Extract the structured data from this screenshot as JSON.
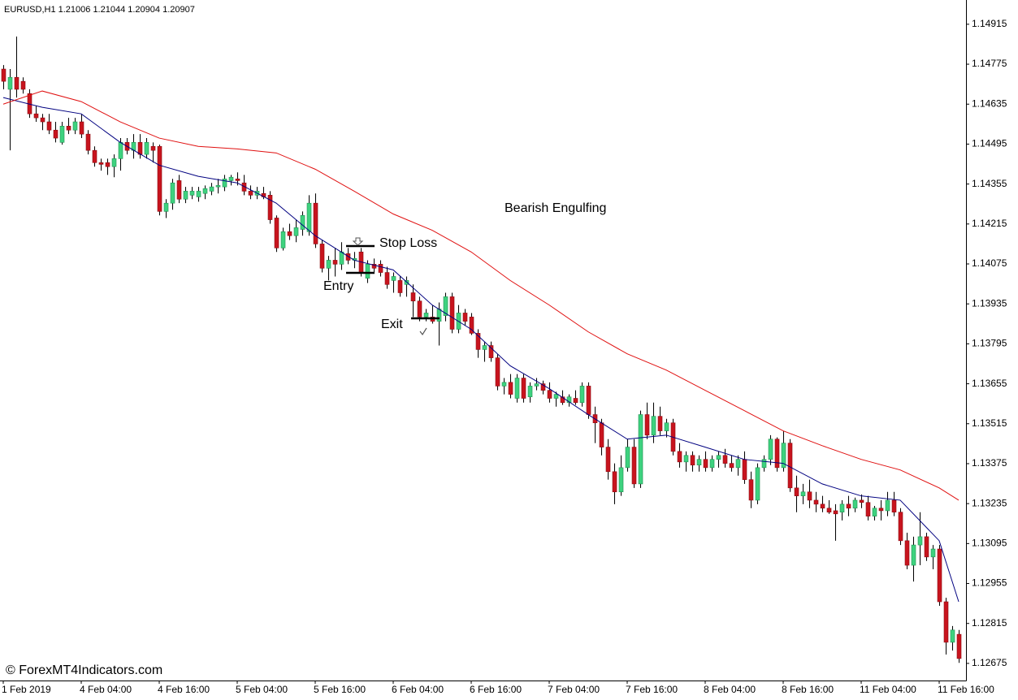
{
  "chart_data": {
    "type": "candlestick",
    "header": "EURUSD,H1  1.21006 1.21044 1.20904 1.20907",
    "bull_color": "#3ed27f",
    "bear_color": "#c8141e",
    "wick_color": "#000000",
    "xlim": [
      -0.5,
      148.125
    ],
    "ylim": [
      1.12615,
      1.15
    ],
    "xticks": [
      {
        "value": 0,
        "label": "1 Feb 2019"
      },
      {
        "value": 12,
        "label": "4 Feb 04:00"
      },
      {
        "value": 24,
        "label": "4 Feb 16:00"
      },
      {
        "value": 36,
        "label": "5 Feb 04:00"
      },
      {
        "value": 48,
        "label": "5 Feb 16:00"
      },
      {
        "value": 60,
        "label": "6 Feb 04:00"
      },
      {
        "value": 72,
        "label": "6 Feb 16:00"
      },
      {
        "value": 84,
        "label": "7 Feb 04:00"
      },
      {
        "value": 96,
        "label": "7 Feb 16:00"
      },
      {
        "value": 108,
        "label": "8 Feb 04:00"
      },
      {
        "value": 120,
        "label": "8 Feb 16:00"
      },
      {
        "value": 132,
        "label": "11 Feb 04:00"
      },
      {
        "value": 144,
        "label": "11 Feb 16:00"
      }
    ],
    "yticks": [
      1.14915,
      1.14775,
      1.14635,
      1.14495,
      1.14355,
      1.14215,
      1.14075,
      1.13935,
      1.13795,
      1.13655,
      1.13515,
      1.13375,
      1.13235,
      1.13095,
      1.12955,
      1.12815,
      1.12675
    ],
    "candles": [
      [
        1.14758,
        1.14772,
        1.14687,
        1.14715
      ],
      [
        1.14687,
        1.14758,
        1.14473,
        1.14729
      ],
      [
        1.14729,
        1.14872,
        1.14658,
        1.14687
      ],
      [
        1.14715,
        1.14729,
        1.14672,
        1.14687
      ],
      [
        1.14672,
        1.14687,
        1.14587,
        1.14601
      ],
      [
        1.14601,
        1.1463,
        1.14573,
        1.14587
      ],
      [
        1.14587,
        1.14601,
        1.14544,
        1.14573
      ],
      [
        1.14573,
        1.14601,
        1.1453,
        1.14544
      ],
      [
        1.14544,
        1.14573,
        1.14501,
        1.14516
      ],
      [
        1.14501,
        1.14573,
        1.14493,
        1.14558
      ],
      [
        1.14558,
        1.14587,
        1.1453,
        1.14544
      ],
      [
        1.14544,
        1.14587,
        1.1453,
        1.14573
      ],
      [
        1.14573,
        1.14601,
        1.14516,
        1.1453
      ],
      [
        1.1453,
        1.14544,
        1.14459,
        1.14473
      ],
      [
        1.14473,
        1.14487,
        1.14416,
        1.1443
      ],
      [
        1.1443,
        1.14444,
        1.14402,
        1.14424
      ],
      [
        1.1443,
        1.14444,
        1.14387,
        1.14416
      ],
      [
        1.14416,
        1.14459,
        1.14379,
        1.14444
      ],
      [
        1.14444,
        1.14516,
        1.14402,
        1.14501
      ],
      [
        1.14501,
        1.14516,
        1.14459,
        1.14473
      ],
      [
        1.14473,
        1.1453,
        1.14444,
        1.14501
      ],
      [
        1.14501,
        1.1453,
        1.14444,
        1.14459
      ],
      [
        1.14459,
        1.14516,
        1.14444,
        1.14501
      ],
      [
        1.14487,
        1.14501,
        1.1443,
        1.14473
      ],
      [
        1.14487,
        1.14493,
        1.14245,
        1.14259
      ],
      [
        1.14259,
        1.14302,
        1.14236,
        1.14288
      ],
      [
        1.14288,
        1.14373,
        1.14265,
        1.14359
      ],
      [
        1.14367,
        1.14387,
        1.14288,
        1.14302
      ],
      [
        1.14302,
        1.14345,
        1.14288,
        1.1433
      ],
      [
        1.14316,
        1.14345,
        1.14302,
        1.1433
      ],
      [
        1.1431,
        1.14345,
        1.14293,
        1.1433
      ],
      [
        1.14322,
        1.1435,
        1.14302,
        1.14339
      ],
      [
        1.1433,
        1.14359,
        1.14316,
        1.14345
      ],
      [
        1.14345,
        1.14373,
        1.14322,
        1.1435
      ],
      [
        1.14345,
        1.14387,
        1.1433,
        1.14373
      ],
      [
        1.14367,
        1.14387,
        1.1435,
        1.14379
      ],
      [
        1.14373,
        1.14396,
        1.1435,
        1.14367
      ],
      [
        1.14359,
        1.14387,
        1.14316,
        1.1433
      ],
      [
        1.1433,
        1.1435,
        1.14302,
        1.14316
      ],
      [
        1.14316,
        1.14345,
        1.14302,
        1.1433
      ],
      [
        1.14322,
        1.14345,
        1.14302,
        1.1431
      ],
      [
        1.14316,
        1.1433,
        1.14216,
        1.1423
      ],
      [
        1.14236,
        1.14245,
        1.14117,
        1.14131
      ],
      [
        1.14131,
        1.14202,
        1.14122,
        1.14188
      ],
      [
        1.14188,
        1.14216,
        1.14159,
        1.14174
      ],
      [
        1.14174,
        1.1423,
        1.14151,
        1.14202
      ],
      [
        1.14196,
        1.14259,
        1.14174,
        1.14245
      ],
      [
        1.14188,
        1.14316,
        1.14174,
        1.14288
      ],
      [
        1.14288,
        1.14322,
        1.14131,
        1.14145
      ],
      [
        1.14145,
        1.14159,
        1.14045,
        1.1406
      ],
      [
        1.1406,
        1.14103,
        1.14017,
        1.14088
      ],
      [
        1.14088,
        1.14131,
        1.14031,
        1.14074
      ],
      [
        1.14074,
        1.14151,
        1.14054,
        1.14117
      ],
      [
        1.14111,
        1.14131,
        1.14074,
        1.14088
      ],
      [
        1.14088,
        1.14117,
        1.1406,
        1.14094
      ],
      [
        1.14117,
        1.14131,
        1.14031,
        1.14045
      ],
      [
        1.14025,
        1.14088,
        1.14008,
        1.14074
      ],
      [
        1.14074,
        1.14094,
        1.14045,
        1.1406
      ],
      [
        1.14074,
        1.14088,
        1.14031,
        1.14045
      ],
      [
        1.14045,
        1.14065,
        1.13988,
        1.14003
      ],
      [
        1.14017,
        1.14045,
        1.13974,
        1.14031
      ],
      [
        1.14017,
        1.14031,
        1.1396,
        1.13974
      ],
      [
        1.14003,
        1.14031,
        1.1396,
        1.14017
      ],
      [
        1.13974,
        1.14003,
        1.13889,
        1.13945
      ],
      [
        1.13945,
        1.1396,
        1.13874,
        1.13889
      ],
      [
        1.13889,
        1.13917,
        1.13874,
        1.13903
      ],
      [
        1.13889,
        1.13931,
        1.13866,
        1.13874
      ],
      [
        1.13874,
        1.1394,
        1.13789,
        1.13917
      ],
      [
        1.13894,
        1.13974,
        1.13874,
        1.1396
      ],
      [
        1.1396,
        1.13974,
        1.13832,
        1.13846
      ],
      [
        1.13846,
        1.13931,
        1.13832,
        1.13903
      ],
      [
        1.13903,
        1.13917,
        1.1386,
        1.13874
      ],
      [
        1.13889,
        1.13903,
        1.13826,
        1.13832
      ],
      [
        1.13832,
        1.13846,
        1.13746,
        1.13775
      ],
      [
        1.13775,
        1.13803,
        1.13732,
        1.13789
      ],
      [
        1.13789,
        1.13803,
        1.13732,
        1.13746
      ],
      [
        1.13746,
        1.1376,
        1.13632,
        1.13647
      ],
      [
        1.13647,
        1.13675,
        1.13618,
        1.1366
      ],
      [
        1.1366,
        1.13689,
        1.13604,
        1.13618
      ],
      [
        1.13604,
        1.13689,
        1.13589,
        1.13675
      ],
      [
        1.13675,
        1.13689,
        1.13589,
        1.13604
      ],
      [
        1.13609,
        1.1366,
        1.13589,
        1.13647
      ],
      [
        1.13647,
        1.13675,
        1.13632,
        1.13655
      ],
      [
        1.13655,
        1.13666,
        1.13618,
        1.13632
      ],
      [
        1.13632,
        1.1366,
        1.13589,
        1.13604
      ],
      [
        1.13604,
        1.13627,
        1.13575,
        1.13618
      ],
      [
        1.13609,
        1.13632,
        1.13581,
        1.13589
      ],
      [
        1.13589,
        1.13618,
        1.13575,
        1.13609
      ],
      [
        1.13604,
        1.13632,
        1.13581,
        1.13589
      ],
      [
        1.13589,
        1.1366,
        1.13575,
        1.13647
      ],
      [
        1.13647,
        1.1366,
        1.13532,
        1.13547
      ],
      [
        1.13547,
        1.13575,
        1.13447,
        1.13518
      ],
      [
        1.13518,
        1.13532,
        1.13404,
        1.13433
      ],
      [
        1.13433,
        1.13461,
        1.13319,
        1.13347
      ],
      [
        1.13347,
        1.13376,
        1.13233,
        1.13276
      ],
      [
        1.13276,
        1.13404,
        1.13262,
        1.13361
      ],
      [
        1.13361,
        1.13461,
        1.13347,
        1.13433
      ],
      [
        1.13433,
        1.13461,
        1.1329,
        1.13304
      ],
      [
        1.13304,
        1.13561,
        1.1329,
        1.13547
      ],
      [
        1.13547,
        1.13589,
        1.13461,
        1.13475
      ],
      [
        1.13475,
        1.13589,
        1.13447,
        1.13541
      ],
      [
        1.13541,
        1.13575,
        1.13475,
        1.1349
      ],
      [
        1.1349,
        1.13532,
        1.13467,
        1.13518
      ],
      [
        1.13518,
        1.13532,
        1.13404,
        1.13418
      ],
      [
        1.13418,
        1.13447,
        1.13361,
        1.13381
      ],
      [
        1.13381,
        1.13418,
        1.13347,
        1.13404
      ],
      [
        1.13404,
        1.13418,
        1.13347,
        1.1337
      ],
      [
        1.1337,
        1.13404,
        1.13347,
        1.1339
      ],
      [
        1.1339,
        1.13418,
        1.13347,
        1.13361
      ],
      [
        1.13361,
        1.13404,
        1.13347,
        1.1339
      ],
      [
        1.1339,
        1.13418,
        1.13361,
        1.13404
      ],
      [
        1.13404,
        1.13427,
        1.13361,
        1.13376
      ],
      [
        1.13376,
        1.13404,
        1.13347,
        1.13361
      ],
      [
        1.13361,
        1.13404,
        1.13333,
        1.1339
      ],
      [
        1.1339,
        1.13418,
        1.13304,
        1.13319
      ],
      [
        1.13319,
        1.13347,
        1.13219,
        1.13247
      ],
      [
        1.13247,
        1.13376,
        1.13233,
        1.13361
      ],
      [
        1.13361,
        1.13404,
        1.13347,
        1.1339
      ],
      [
        1.1339,
        1.13475,
        1.1337,
        1.13461
      ],
      [
        1.13461,
        1.13467,
        1.13347,
        1.13361
      ],
      [
        1.13361,
        1.1349,
        1.13347,
        1.13447
      ],
      [
        1.13447,
        1.13461,
        1.13276,
        1.1329
      ],
      [
        1.1329,
        1.13333,
        1.13205,
        1.13262
      ],
      [
        1.13262,
        1.13304,
        1.13233,
        1.13276
      ],
      [
        1.13276,
        1.13319,
        1.13219,
        1.13247
      ],
      [
        1.13247,
        1.13276,
        1.13205,
        1.13233
      ],
      [
        1.13233,
        1.13262,
        1.13205,
        1.13219
      ],
      [
        1.13219,
        1.13247,
        1.13199,
        1.13205
      ],
      [
        1.1321,
        1.13233,
        1.13105,
        1.13199
      ],
      [
        1.13205,
        1.13247,
        1.13176,
        1.13233
      ],
      [
        1.13233,
        1.13262,
        1.13191,
        1.13219
      ],
      [
        1.13219,
        1.13256,
        1.13205,
        1.13247
      ],
      [
        1.13247,
        1.13267,
        1.13219,
        1.13239
      ],
      [
        1.13239,
        1.13262,
        1.13176,
        1.13191
      ],
      [
        1.13191,
        1.13227,
        1.13176,
        1.13219
      ],
      [
        1.13219,
        1.13247,
        1.13176,
        1.1321
      ],
      [
        1.1321,
        1.13276,
        1.13191,
        1.13247
      ],
      [
        1.13247,
        1.13276,
        1.13191,
        1.13205
      ],
      [
        1.13205,
        1.13219,
        1.1309,
        1.13105
      ],
      [
        1.13105,
        1.13133,
        1.13005,
        1.13019
      ],
      [
        1.13019,
        1.13119,
        1.12962,
        1.1309
      ],
      [
        1.1309,
        1.13205,
        1.13019,
        1.13119
      ],
      [
        1.13119,
        1.13133,
        1.13034,
        1.13048
      ],
      [
        1.13048,
        1.1309,
        1.13005,
        1.13076
      ],
      [
        1.13076,
        1.1309,
        1.12877,
        1.12891
      ],
      [
        1.12891,
        1.12905,
        1.12706,
        1.12749
      ],
      [
        1.12749,
        1.12806,
        1.1272,
        1.12792
      ],
      [
        1.12777,
        1.12792,
        1.12677,
        1.12692
      ]
    ],
    "lines": [
      {
        "color": "#000080",
        "x": [
          0,
          6,
          12,
          18,
          24,
          30,
          36,
          42,
          48,
          54,
          60,
          66,
          72,
          78,
          84,
          90,
          96,
          102,
          108,
          114,
          120,
          126,
          132,
          138,
          144,
          147
        ],
        "values": [
          1.14658,
          1.14624,
          1.14601,
          1.14501,
          1.14421,
          1.14382,
          1.14359,
          1.14288,
          1.14174,
          1.14088,
          1.14054,
          1.13931,
          1.13846,
          1.13718,
          1.13638,
          1.13547,
          1.13461,
          1.13475,
          1.13433,
          1.1339,
          1.13376,
          1.13304,
          1.13262,
          1.13247,
          1.13105,
          1.12891
        ]
      },
      {
        "color": "#e01010",
        "x": [
          0,
          6,
          12,
          18,
          24,
          30,
          36,
          42,
          48,
          54,
          60,
          66,
          72,
          78,
          84,
          90,
          96,
          102,
          108,
          114,
          120,
          126,
          132,
          138,
          144,
          147
        ],
        "values": [
          1.14635,
          1.14681,
          1.14644,
          1.14573,
          1.14516,
          1.14487,
          1.14478,
          1.14464,
          1.14407,
          1.1433,
          1.1425,
          1.14193,
          1.14117,
          1.14017,
          1.13931,
          1.13837,
          1.1376,
          1.13703,
          1.13632,
          1.13561,
          1.1349,
          1.13438,
          1.1339,
          1.13353,
          1.1329,
          1.13247
        ]
      }
    ],
    "annotations": [
      "Bearish Engulfing",
      "Stop Loss",
      "Entry",
      "Exit"
    ],
    "watermark": "© ForexMT4Indicators.com"
  }
}
